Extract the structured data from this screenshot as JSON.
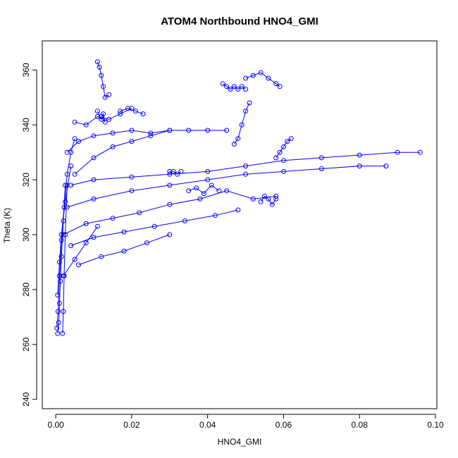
{
  "chart_data": {
    "type": "scatter",
    "title": "ATOM4 Northbound HNO4_GMI",
    "xlabel": "HNO4_GMI",
    "ylabel": "Theta (K)",
    "xlim": [
      0.0,
      0.1
    ],
    "ylim": [
      240,
      365
    ],
    "x_ticks": [
      "0.00",
      "0.02",
      "0.04",
      "0.06",
      "0.08",
      "0.10"
    ],
    "y_ticks": [
      "240",
      "260",
      "280",
      "300",
      "320",
      "340",
      "360"
    ],
    "grid": false,
    "point_style": "open-circle-with-connecting-line",
    "color": "#0000ff",
    "series": [
      {
        "x": [
          0.0005,
          0.0008,
          0.001,
          0.0012,
          0.0015,
          0.002,
          0.0025
        ],
        "y": [
          264,
          268,
          275,
          283,
          292,
          305,
          318
        ]
      },
      {
        "x": [
          0.0003,
          0.0006,
          0.001,
          0.0015,
          0.0022,
          0.003,
          0.004,
          0.005
        ],
        "y": [
          266,
          272,
          285,
          298,
          310,
          322,
          330,
          335
        ]
      },
      {
        "x": [
          0.0018,
          0.002,
          0.0022,
          0.0025,
          0.003
        ],
        "y": [
          264,
          272,
          285,
          300,
          318
        ]
      },
      {
        "x": [
          0.0005,
          0.001,
          0.0015,
          0.0025,
          0.004
        ],
        "y": [
          278,
          290,
          300,
          312,
          325
        ]
      },
      {
        "x": [
          0.011,
          0.0115,
          0.012,
          0.0125,
          0.013,
          0.014
        ],
        "y": [
          363,
          361,
          358,
          354,
          350,
          351
        ]
      },
      {
        "x": [
          0.011,
          0.012,
          0.0125,
          0.013,
          0.012
        ],
        "y": [
          345,
          342,
          344,
          341,
          343
        ]
      },
      {
        "x": [
          0.005,
          0.008,
          0.011,
          0.014,
          0.017,
          0.02
        ],
        "y": [
          341,
          340,
          343,
          342,
          344,
          346
        ]
      },
      {
        "x": [
          0.017,
          0.019,
          0.021,
          0.023
        ],
        "y": [
          345,
          346,
          345,
          344
        ]
      },
      {
        "x": [
          0.003,
          0.006,
          0.01,
          0.015,
          0.02,
          0.025,
          0.03,
          0.035,
          0.04,
          0.045
        ],
        "y": [
          330,
          334,
          336,
          337,
          338,
          337,
          338,
          338,
          338,
          338
        ]
      },
      {
        "x": [
          0.044,
          0.045,
          0.046,
          0.047,
          0.048,
          0.049,
          0.05
        ],
        "y": [
          355,
          354,
          353,
          354,
          353,
          354,
          353
        ]
      },
      {
        "x": [
          0.05,
          0.052,
          0.054,
          0.056,
          0.058,
          0.059
        ],
        "y": [
          357,
          358,
          359,
          357,
          355,
          354
        ]
      },
      {
        "x": [
          0.058,
          0.059,
          0.06,
          0.061,
          0.062
        ],
        "y": [
          328,
          330,
          332,
          334,
          335
        ]
      },
      {
        "x": [
          0.005,
          0.01,
          0.015,
          0.02,
          0.025,
          0.03
        ],
        "y": [
          322,
          328,
          332,
          334,
          336,
          338
        ]
      },
      {
        "x": [
          0.004,
          0.01,
          0.02,
          0.03,
          0.04,
          0.05,
          0.06,
          0.07,
          0.08,
          0.09,
          0.096
        ],
        "y": [
          318,
          320,
          321,
          322,
          323,
          325,
          327,
          328,
          329,
          330,
          330
        ]
      },
      {
        "x": [
          0.003,
          0.01,
          0.02,
          0.03,
          0.04,
          0.05,
          0.06,
          0.07,
          0.08,
          0.087
        ],
        "y": [
          310,
          313,
          316,
          318,
          320,
          322,
          323,
          324,
          325,
          325
        ]
      },
      {
        "x": [
          0.03,
          0.031,
          0.032,
          0.033
        ],
        "y": [
          323,
          323,
          322,
          323
        ]
      },
      {
        "x": [
          0.002,
          0.008,
          0.015,
          0.022,
          0.03,
          0.038,
          0.045,
          0.052,
          0.058
        ],
        "y": [
          300,
          304,
          306,
          308,
          311,
          313,
          316,
          313,
          314
        ]
      },
      {
        "x": [
          0.004,
          0.01,
          0.018,
          0.026,
          0.034,
          0.042,
          0.048
        ],
        "y": [
          296,
          299,
          301,
          303,
          305,
          307,
          309
        ]
      },
      {
        "x": [
          0.006,
          0.012,
          0.018,
          0.024,
          0.03
        ],
        "y": [
          289,
          292,
          294,
          297,
          300
        ]
      },
      {
        "x": [
          0.002,
          0.005,
          0.008,
          0.011
        ],
        "y": [
          285,
          291,
          297,
          303
        ]
      },
      {
        "x": [
          0.054,
          0.055,
          0.056,
          0.057,
          0.058
        ],
        "y": [
          312,
          314,
          313,
          311,
          313
        ]
      },
      {
        "x": [
          0.035,
          0.037,
          0.039,
          0.041,
          0.043
        ],
        "y": [
          316,
          317,
          315,
          318,
          316
        ]
      },
      {
        "x": [
          0.047,
          0.048,
          0.049,
          0.05,
          0.051
        ],
        "y": [
          333,
          335,
          340,
          345,
          348
        ]
      }
    ]
  }
}
